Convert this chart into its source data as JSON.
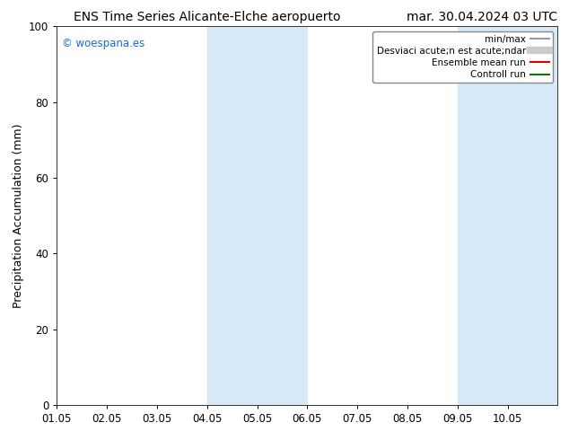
{
  "title_left": "ENS Time Series Alicante-Elche aeropuerto",
  "title_right": "mar. 30.04.2024 03 UTC",
  "ylabel": "Precipitation Accumulation (mm)",
  "ylim": [
    0,
    100
  ],
  "yticks": [
    0,
    20,
    40,
    60,
    80,
    100
  ],
  "xtick_labels": [
    "01.05",
    "02.05",
    "03.05",
    "04.05",
    "05.05",
    "06.05",
    "07.05",
    "08.05",
    "09.05",
    "10.05"
  ],
  "xtick_positions": [
    0,
    1,
    2,
    3,
    4,
    5,
    6,
    7,
    8,
    9
  ],
  "xlim": [
    0,
    10
  ],
  "bg_color": "#ffffff",
  "plot_bg_color": "#ffffff",
  "shaded_regions": [
    {
      "x_start": 3.0,
      "x_end": 5.0,
      "color": "#d6e9f8",
      "alpha": 1.0
    },
    {
      "x_start": 8.0,
      "x_end": 10.0,
      "color": "#d6e9f8",
      "alpha": 1.0
    }
  ],
  "watermark_text": "© woespana.es",
  "watermark_color": "#1a6acd",
  "legend_items": [
    {
      "label": "min/max",
      "color": "#999999",
      "lw": 1.5,
      "type": "line"
    },
    {
      "label": "Desviaci acute;n est acute;ndar",
      "color": "#cccccc",
      "lw": 6,
      "type": "line"
    },
    {
      "label": "Ensemble mean run",
      "color": "#dd0000",
      "lw": 1.5,
      "type": "line"
    },
    {
      "label": "Controll run",
      "color": "#007700",
      "lw": 1.5,
      "type": "line"
    }
  ],
  "title_fontsize": 10,
  "tick_fontsize": 8.5,
  "ylabel_fontsize": 9,
  "legend_fontsize": 7.5,
  "watermark_fontsize": 8.5
}
